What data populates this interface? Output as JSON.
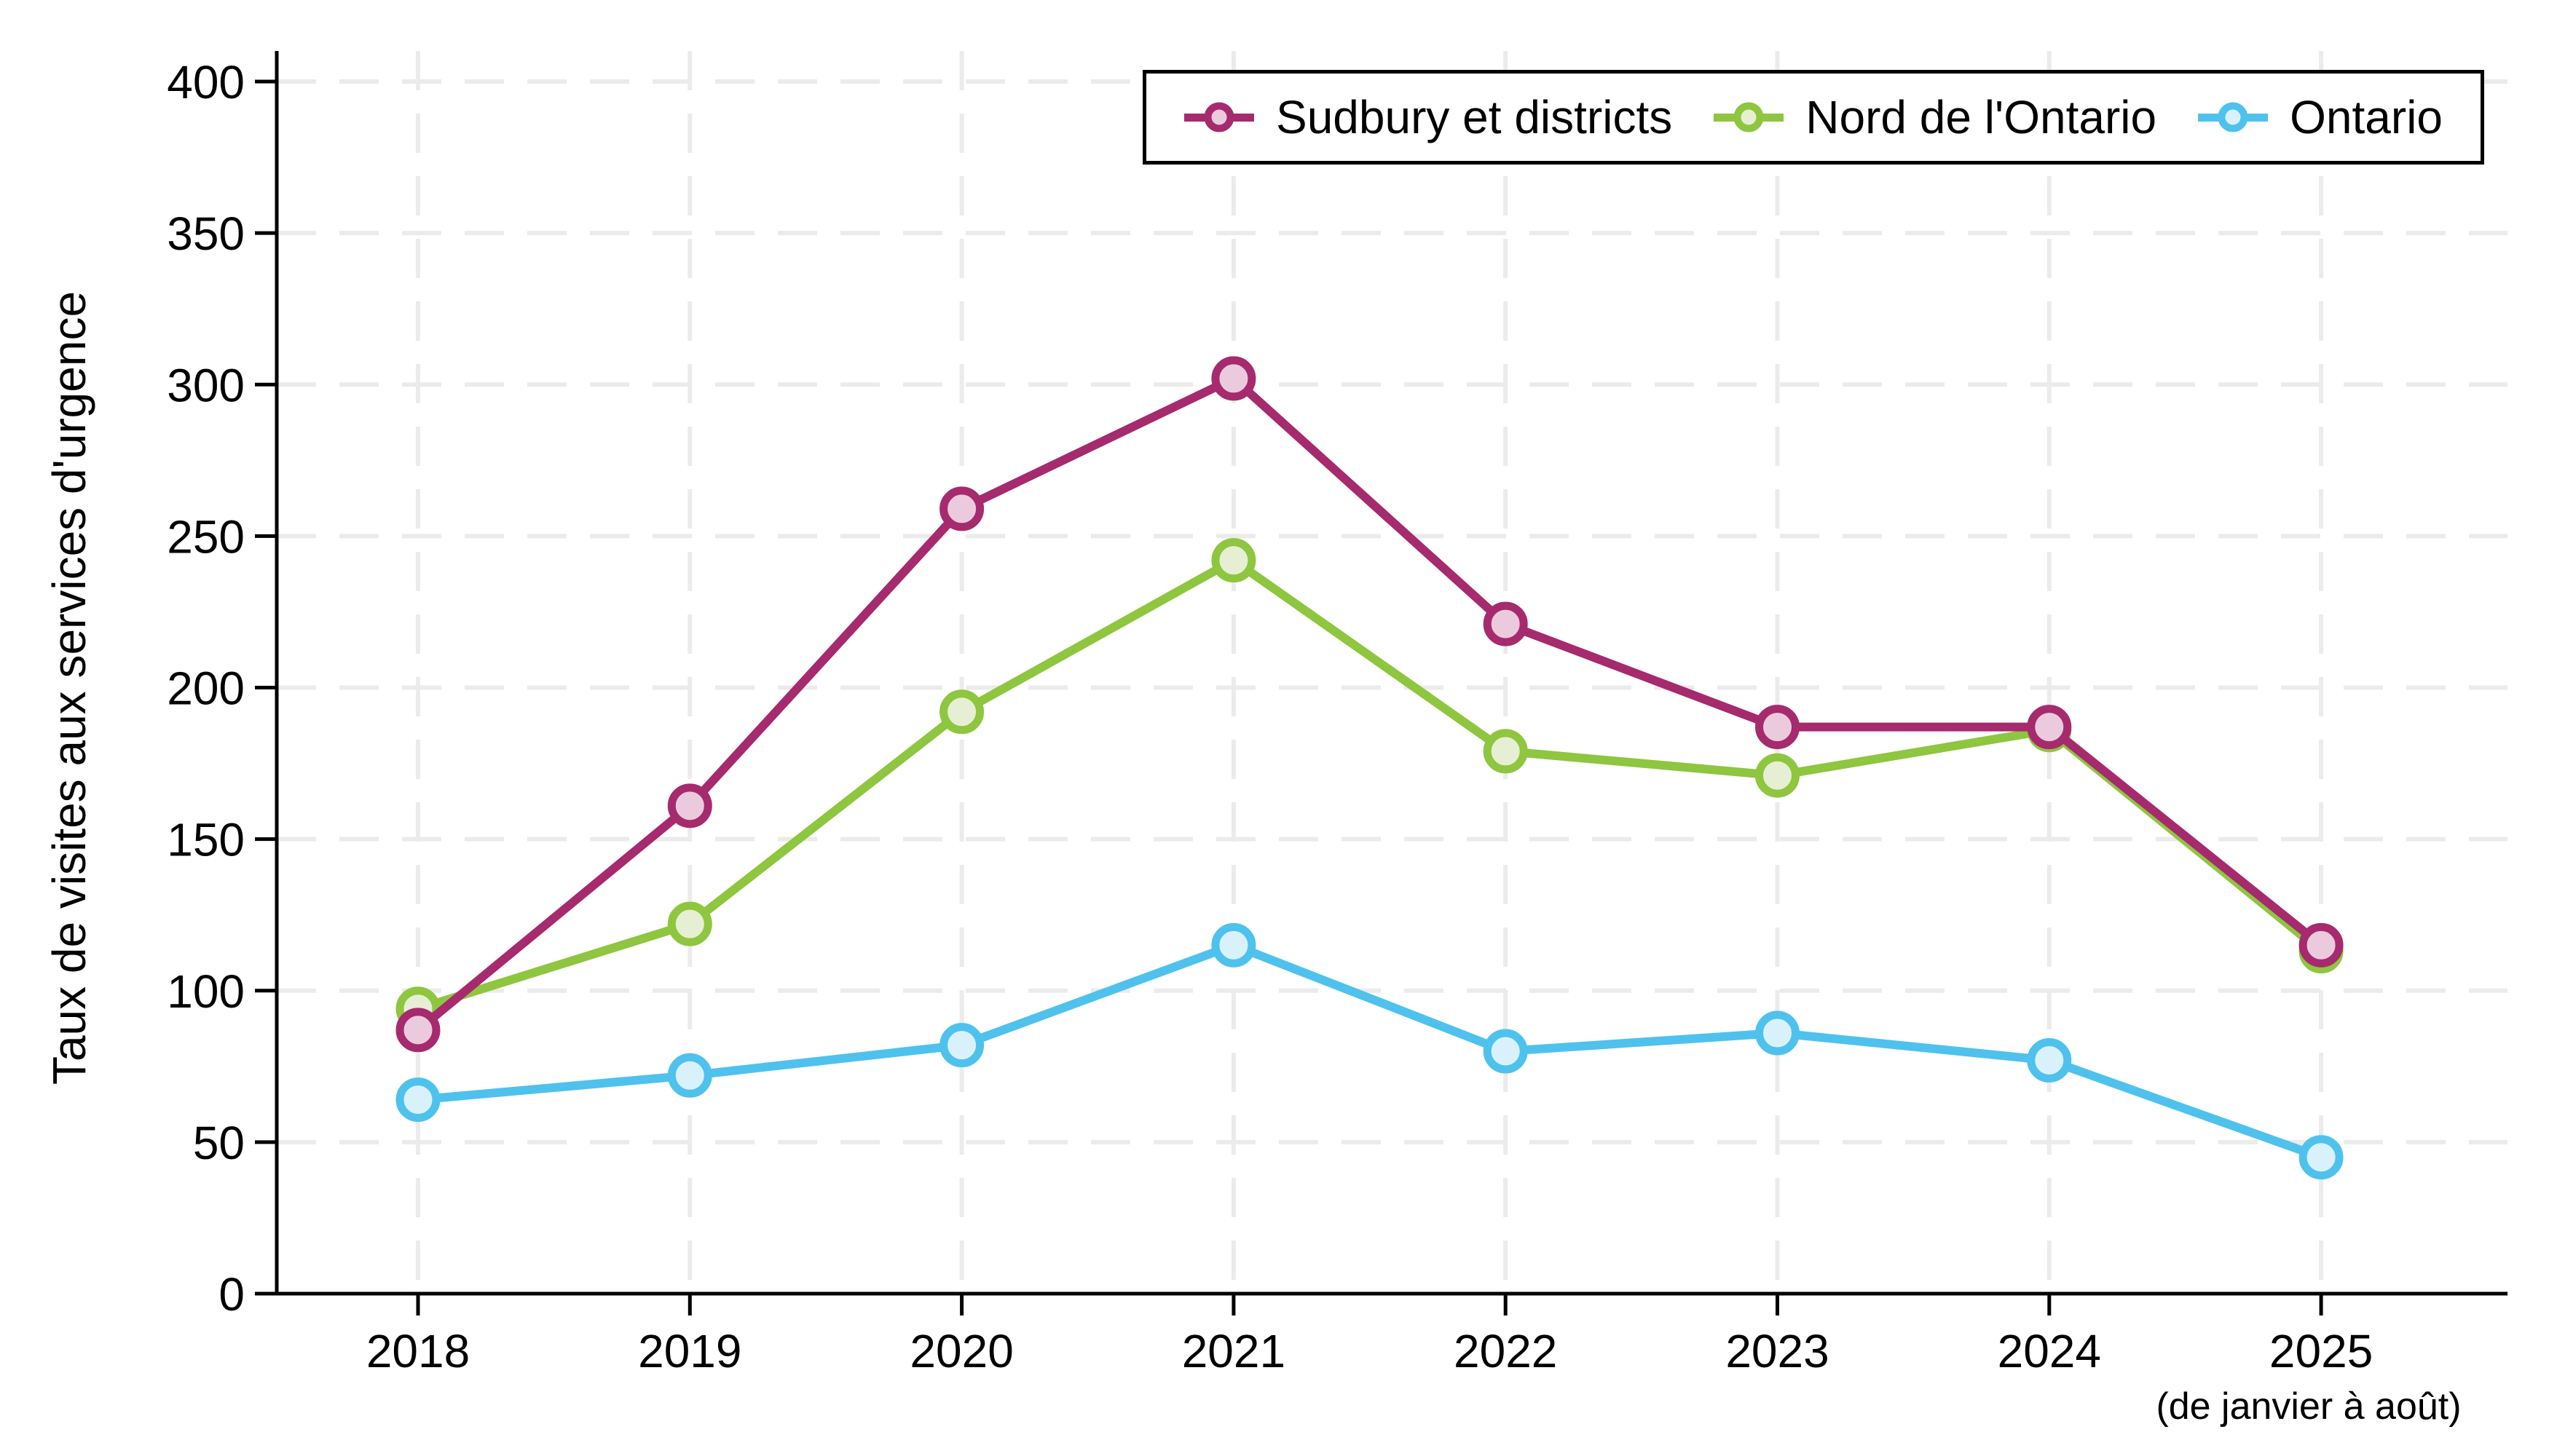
{
  "chart_data": {
    "type": "line",
    "title": "",
    "xlabel": "",
    "ylabel": "Taux de visites aux services d'urgence",
    "x_axis_note": "(de janvier à août)",
    "categories": [
      "2018",
      "2019",
      "2020",
      "2021",
      "2022",
      "2023",
      "2024",
      "2025"
    ],
    "ylim": [
      0,
      400
    ],
    "ytick_step": 50,
    "yticks": [
      0,
      50,
      100,
      150,
      200,
      250,
      300,
      350,
      400
    ],
    "grid": "dashed-both-axes",
    "legend_position": "top-right",
    "axis_color": "#000000",
    "gridline_color": "#ebebeb",
    "series": [
      {
        "name": "Sudbury et districts",
        "color": "#a62a6e",
        "marker_fill": "#eccade",
        "values": [
          87,
          161,
          259,
          302,
          221,
          187,
          187,
          115
        ]
      },
      {
        "name": "Nord de l'Ontario",
        "color": "#8ec63f",
        "marker_fill": "#e6efd3",
        "values": [
          94,
          122,
          192,
          242,
          179,
          171,
          186,
          113
        ]
      },
      {
        "name": "Ontario",
        "color": "#4ec2ed",
        "marker_fill": "#d9f1fb",
        "values": [
          64,
          72,
          82,
          115,
          80,
          86,
          77,
          45
        ]
      }
    ]
  }
}
